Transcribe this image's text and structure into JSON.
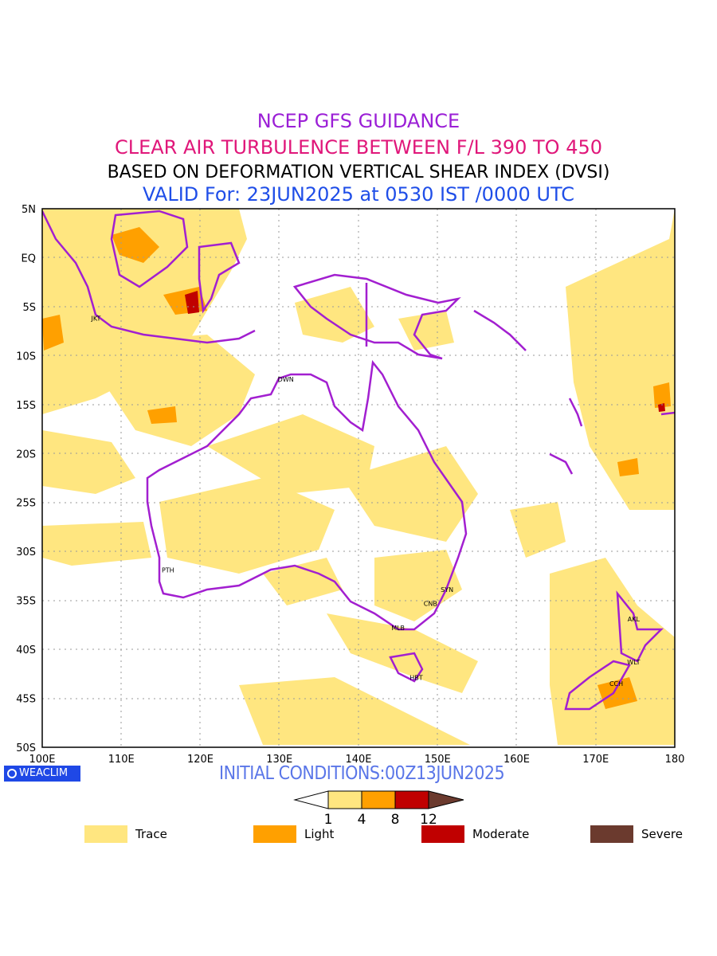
{
  "titles": {
    "line1": "NCEP GFS GUIDANCE",
    "line2": "CLEAR AIR TURBULENCE BETWEEN F/L 390 TO 450",
    "line3": "BASED ON DEFORMATION VERTICAL SHEAR INDEX (DVSI)",
    "line4": "VALID For: 23JUN2025 at 0530 IST /0000 UTC"
  },
  "axes": {
    "lon_labels": [
      "100E",
      "110E",
      "120E",
      "130E",
      "140E",
      "150E",
      "160E",
      "170E",
      "180"
    ],
    "lat_labels": [
      "5N",
      "EQ",
      "5S",
      "10S",
      "15S",
      "20S",
      "25S",
      "30S",
      "35S",
      "40S",
      "45S",
      "50S"
    ]
  },
  "cities": [
    {
      "code": "JKT",
      "lon": 106.8,
      "lat": -6.2
    },
    {
      "code": "DWN",
      "lon": 130.8,
      "lat": -12.4
    },
    {
      "code": "PTH",
      "lon": 115.9,
      "lat": -31.9
    },
    {
      "code": "SYN",
      "lon": 151.2,
      "lat": -33.9
    },
    {
      "code": "CNB",
      "lon": 149.1,
      "lat": -35.3
    },
    {
      "code": "MLB",
      "lon": 145.0,
      "lat": -37.8
    },
    {
      "code": "HBT",
      "lon": 147.3,
      "lat": -42.9
    },
    {
      "code": "AKL",
      "lon": 174.8,
      "lat": -36.9
    },
    {
      "code": "WLT",
      "lon": 174.8,
      "lat": -41.3
    },
    {
      "code": "CCH",
      "lon": 172.6,
      "lat": -43.5
    }
  ],
  "initial_conditions": "INITIAL CONDITIONS:00Z13JUN2025",
  "logo_text": "WEACLIM",
  "colorbar": {
    "ticks": [
      "1",
      "4",
      "8",
      "12"
    ],
    "colors": [
      "#ffffff",
      "#ffe680",
      "#ffa000",
      "#c00000",
      "#6b3a2e"
    ]
  },
  "legend": [
    {
      "label": "Trace",
      "color": "#ffe680"
    },
    {
      "label": "Light",
      "color": "#ffa000"
    },
    {
      "label": "Moderate",
      "color": "#c00000"
    },
    {
      "label": "Severe",
      "color": "#6b3a2e"
    }
  ],
  "colors": {
    "coast": "#a21fd0",
    "grid": "#9a9a9a"
  }
}
